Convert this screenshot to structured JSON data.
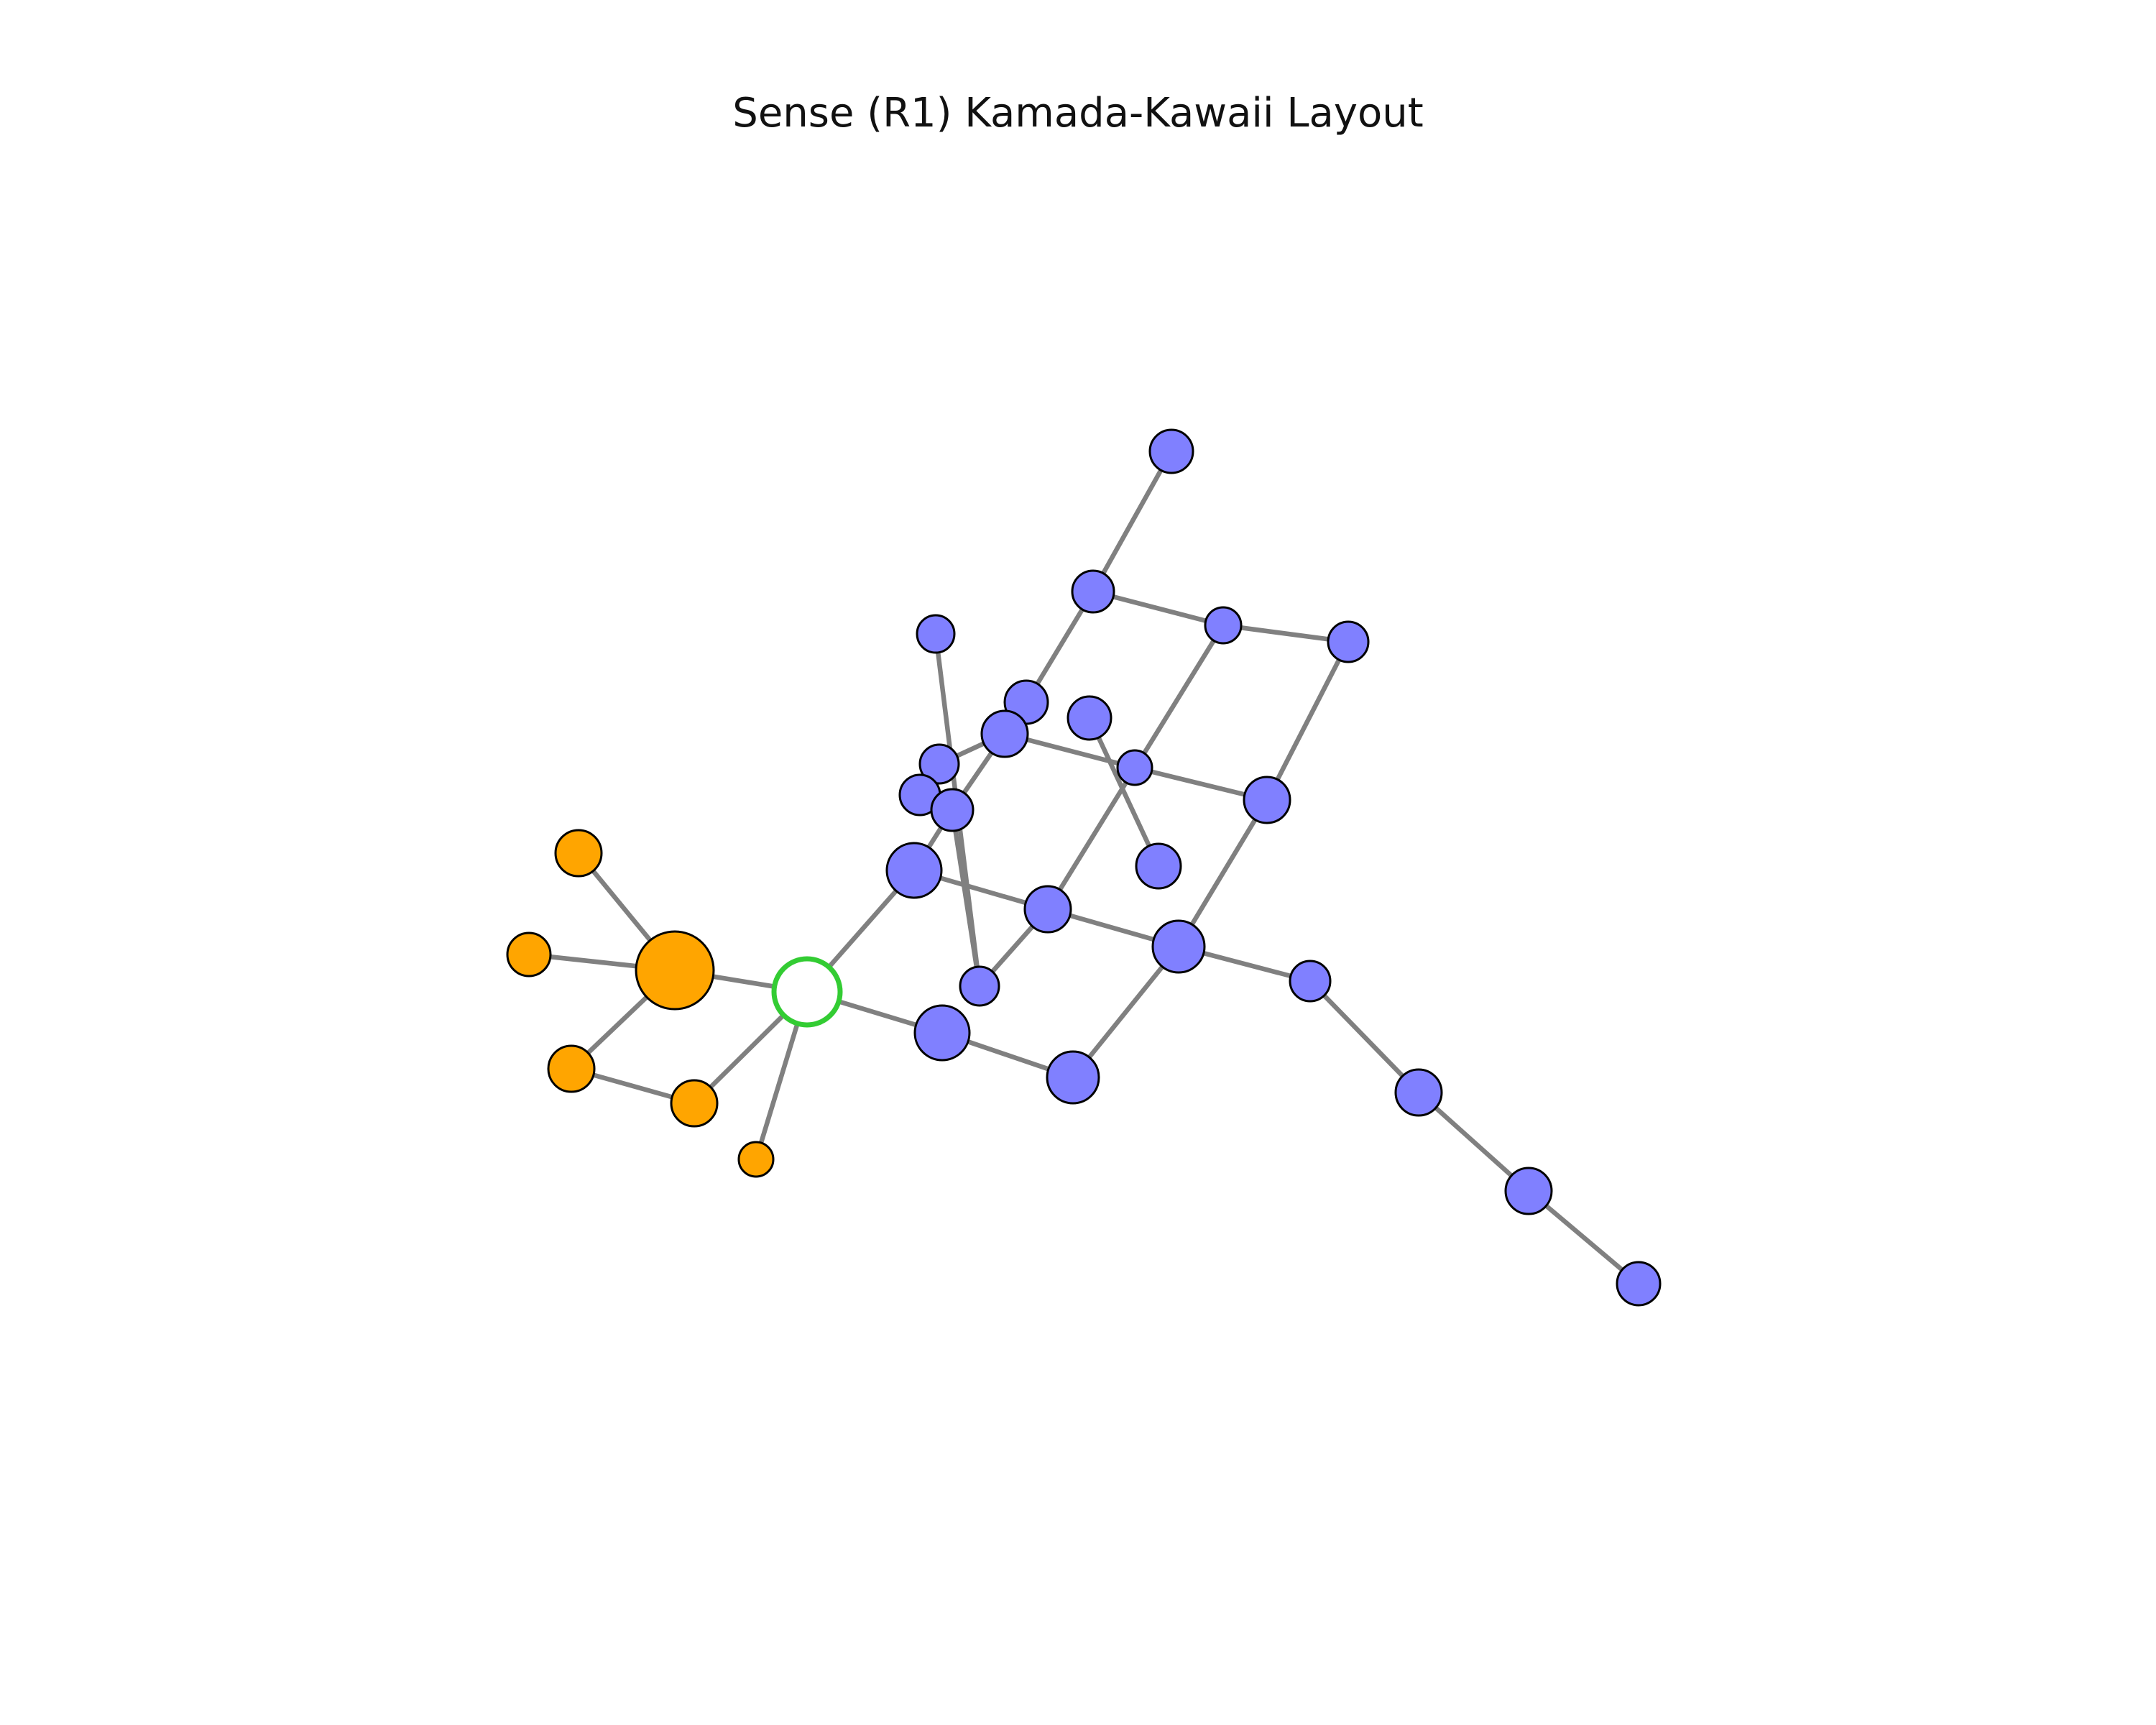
{
  "title": "Sense (R1) Kamada-Kawaii Layout",
  "colors": {
    "cluster_a": "#8080ff",
    "cluster_b": "#ffa500",
    "hub_stroke": "#33cc33",
    "edge": "#808080"
  },
  "graph": {
    "layout": "Kamada-Kawaii",
    "node_count": 38,
    "edge_count": 38,
    "nodes": [
      {
        "id": "h",
        "group": "hub"
      },
      {
        "id": "b1",
        "group": "a"
      },
      {
        "id": "b2",
        "group": "a"
      },
      {
        "id": "b3",
        "group": "a"
      },
      {
        "id": "b4",
        "group": "a"
      },
      {
        "id": "b5",
        "group": "a"
      },
      {
        "id": "b6",
        "group": "a"
      },
      {
        "id": "b7",
        "group": "a"
      },
      {
        "id": "b8",
        "group": "a"
      },
      {
        "id": "b9",
        "group": "a"
      },
      {
        "id": "b10",
        "group": "a"
      },
      {
        "id": "b11",
        "group": "a"
      },
      {
        "id": "b12",
        "group": "a"
      },
      {
        "id": "b13",
        "group": "a"
      },
      {
        "id": "b14",
        "group": "a"
      },
      {
        "id": "b15",
        "group": "a"
      },
      {
        "id": "b16",
        "group": "a"
      },
      {
        "id": "b17",
        "group": "a"
      },
      {
        "id": "b18",
        "group": "a"
      },
      {
        "id": "b19",
        "group": "a"
      },
      {
        "id": "b20",
        "group": "a"
      },
      {
        "id": "b21",
        "group": "a"
      },
      {
        "id": "b22",
        "group": "a"
      },
      {
        "id": "b23",
        "group": "a"
      },
      {
        "id": "b24",
        "group": "a"
      },
      {
        "id": "b25",
        "group": "a"
      },
      {
        "id": "b26",
        "group": "a"
      },
      {
        "id": "b27",
        "group": "a"
      },
      {
        "id": "b28",
        "group": "a"
      },
      {
        "id": "b29",
        "group": "a"
      },
      {
        "id": "b30",
        "group": "a"
      },
      {
        "id": "o1",
        "group": "b"
      },
      {
        "id": "o2",
        "group": "b"
      },
      {
        "id": "o3",
        "group": "b"
      },
      {
        "id": "o4",
        "group": "b"
      },
      {
        "id": "o5",
        "group": "b"
      },
      {
        "id": "o6",
        "group": "b"
      },
      {
        "id": "o7",
        "group": "b"
      }
    ],
    "edges": [
      [
        "b1",
        "b2"
      ],
      [
        "b2",
        "b3"
      ],
      [
        "b3",
        "b4"
      ],
      [
        "b2",
        "b5"
      ],
      [
        "b5",
        "b6"
      ],
      [
        "b4",
        "b7"
      ],
      [
        "b7",
        "b8"
      ],
      [
        "b5",
        "b9"
      ],
      [
        "b9",
        "b10"
      ],
      [
        "b10",
        "b11"
      ],
      [
        "b11",
        "b12"
      ],
      [
        "b12",
        "h"
      ],
      [
        "b6",
        "b8"
      ],
      [
        "b13",
        "b14"
      ],
      [
        "b14",
        "b15"
      ],
      [
        "b15",
        "b16"
      ],
      [
        "b16",
        "b17"
      ],
      [
        "b18",
        "b19"
      ],
      [
        "b20",
        "b21"
      ],
      [
        "b21",
        "b22"
      ],
      [
        "b8",
        "b23"
      ],
      [
        "b23",
        "b24"
      ],
      [
        "b24",
        "b25"
      ],
      [
        "b25",
        "b26"
      ],
      [
        "b26",
        "b27"
      ],
      [
        "b27",
        "b28"
      ],
      [
        "b16",
        "b29"
      ],
      [
        "b29",
        "b30"
      ],
      [
        "b30",
        "h"
      ],
      [
        "b12",
        "b21"
      ],
      [
        "b21",
        "b23"
      ],
      [
        "h",
        "o1"
      ],
      [
        "h",
        "o2"
      ],
      [
        "h",
        "o3"
      ],
      [
        "o1",
        "o4"
      ],
      [
        "o1",
        "o5"
      ],
      [
        "o1",
        "o6"
      ],
      [
        "o6",
        "o7"
      ]
    ]
  }
}
